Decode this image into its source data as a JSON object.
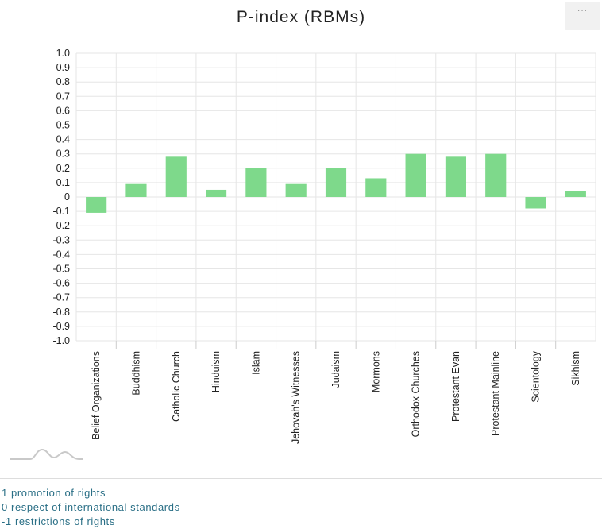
{
  "header": {
    "title": "P-index (RBMs)",
    "menu_icon": "ellipsis-icon"
  },
  "chart_data": {
    "type": "bar",
    "title": "P-index (RBMs)",
    "xlabel": "",
    "ylabel": "",
    "ylim": [
      -1.0,
      1.0
    ],
    "yticks": [
      "1.0",
      "0.9",
      "0.8",
      "0.7",
      "0.6",
      "0.5",
      "0.4",
      "0.3",
      "0.2",
      "0.1",
      "0",
      "-0.1",
      "-0.2",
      "-0.3",
      "-0.4",
      "-0.5",
      "-0.6",
      "-0.7",
      "-0.8",
      "-0.9",
      "-1.0"
    ],
    "categories": [
      "Belief Organizations",
      "Buddhism",
      "Catholic Church",
      "Hinduism",
      "Islam",
      "Jehovah's Witnesses",
      "Judaism",
      "Mormons",
      "Orthodox Churches",
      "Protestant Evan",
      "Protestant Mainline",
      "Scientology",
      "Sikhism"
    ],
    "values": [
      -0.11,
      0.09,
      0.28,
      0.05,
      0.2,
      0.09,
      0.2,
      0.13,
      0.3,
      0.28,
      0.3,
      -0.08,
      0.04
    ],
    "bar_color": "#7ed98b",
    "grid": true,
    "legend": "none"
  },
  "navigator_icon": "range-navigator-icon",
  "legend": {
    "lines": [
      "1 promotion of rights",
      "0 respect of international standards",
      "-1 restrictions of rights"
    ]
  }
}
